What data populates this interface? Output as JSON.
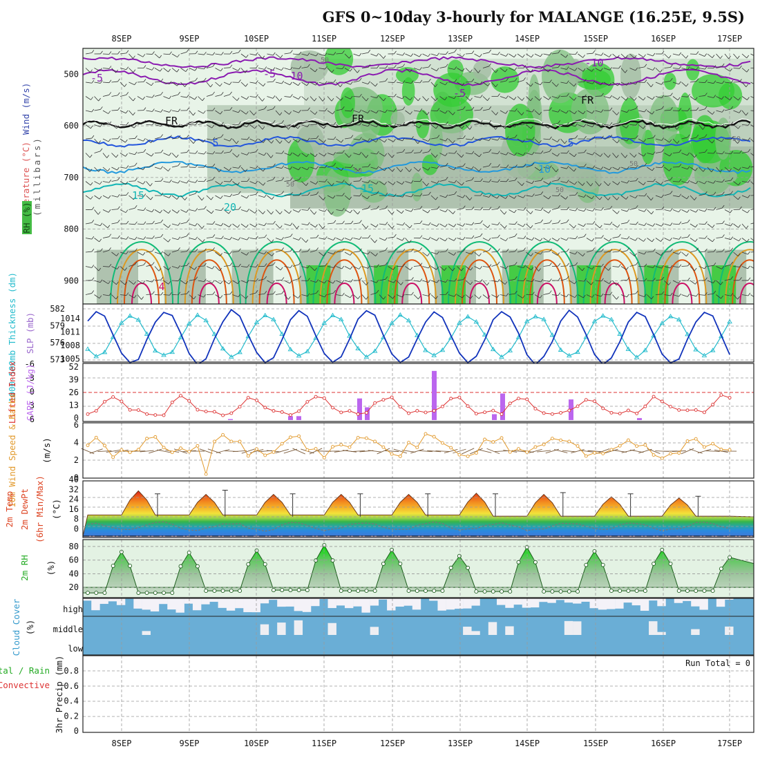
{
  "title": "GFS 0~10day 3-hourly for MALANGE (16.25E, 9.5S)",
  "day_labels": [
    "8SEP",
    "9SEP",
    "10SEP",
    "11SEP",
    "12SEP",
    "13SEP",
    "14SEP",
    "15SEP",
    "16SEP",
    "17SEP"
  ],
  "run_total": "Run Total = 0",
  "colors": {
    "rh_green": "#33cc33",
    "rh_mid": "#9fb99f",
    "rh_light": "#e3f2e3",
    "t_violet": "#8a1ab0",
    "t_blue": "#2255dd",
    "t_lightblue": "#2299dd",
    "t_teal": "#11b5b5",
    "t_green": "#11bb77",
    "t_orange": "#dd9922",
    "t_red": "#dd5511",
    "t_magenta": "#cc1166",
    "slp": "#1133bb",
    "thickness": "#22bbcc",
    "lifted": "#dd3333",
    "cape": "#bb66ee",
    "wind": "#e29a2d",
    "cloud": "#6aaed6",
    "grid": "#888888"
  },
  "panels": {
    "upper": {
      "ylabels": {
        "wind": "Wind (m/s)",
        "temperature": "Temperature (°C)",
        "rh": "RH (%)",
        "units": "(millibars)"
      },
      "pressure_ticks": [
        "500",
        "600",
        "700",
        "800",
        "900"
      ],
      "isotherm_labels": [
        "-5",
        "-5",
        "-10",
        "-5",
        "-10",
        "FR",
        "FR",
        "FR",
        "5",
        "5",
        "10",
        "15",
        "15",
        "20",
        "4",
        "50",
        "50",
        "50",
        "50",
        "50",
        "50"
      ]
    },
    "slp": {
      "ylabels": {
        "thickness": "1000-500mb Thickness (dm)",
        "slp": "SLP (mb)"
      },
      "left_ticks": [
        "582",
        "579",
        "576",
        "573"
      ],
      "right_ticks": [
        "1014",
        "1011",
        "1008",
        "1005"
      ]
    },
    "cape": {
      "ylabels": {
        "lifted": "Lifted Index",
        "cape": "CAPE (J/kg)"
      },
      "left_ticks": [
        "-6",
        "-3",
        "0",
        "3",
        "6"
      ],
      "right_ticks": [
        "52",
        "39",
        "26",
        "13",
        "0"
      ]
    },
    "wind": {
      "ylabels": {
        "wind": "10m Wind Speed & Barbs",
        "units": "(m/s)"
      },
      "ticks": [
        "6",
        "4",
        "2",
        "0"
      ]
    },
    "temp": {
      "ylabels": {
        "temp": "2m Temp",
        "dew": "2m DewPt",
        "minmax": "(6hr Min/Max)",
        "units": "(°C)"
      },
      "ticks": [
        "40",
        "32",
        "24",
        "16",
        "8",
        "0"
      ]
    },
    "rh": {
      "ylabels": {
        "rh": "2m RH",
        "units": "(%)"
      },
      "ticks": [
        "80",
        "60",
        "40",
        "20"
      ]
    },
    "cloud": {
      "ylabels": {
        "cloud": "Cloud Cover",
        "units": "(%)"
      },
      "rows": [
        "high",
        "middle",
        "low"
      ]
    },
    "precip": {
      "ylabels": {
        "total": "Total / Rain",
        "convective": "Convective",
        "precip": "3hr Precip (mm)"
      },
      "ticks": [
        "0.8",
        "0.6",
        "0.4",
        "0.2",
        "0"
      ]
    }
  },
  "chart_data": [
    {
      "type": "line",
      "name": "SLP and thickness",
      "x": [
        "8SEP",
        "9SEP",
        "10SEP",
        "11SEP",
        "12SEP",
        "13SEP",
        "14SEP",
        "15SEP",
        "16SEP",
        "17SEP"
      ],
      "series": [
        {
          "name": "SLP (mb)",
          "pattern_min": 1006,
          "pattern_max": 1015.5
        },
        {
          "name": "1000-500mb Thickness (dm)",
          "pattern_min": 573.5,
          "pattern_max": 581
        }
      ]
    },
    {
      "type": "bar",
      "name": "CAPE",
      "x": [
        "11SEP",
        "12SEP",
        "13SEP",
        "14SEP",
        "15SEP"
      ],
      "series": [
        {
          "name": "CAPE (J/kg)",
          "peaks": [
            22,
            50,
            27,
            21
          ]
        }
      ]
    },
    {
      "type": "line",
      "name": "10m Wind Speed",
      "ylim": [
        0,
        6
      ],
      "series": [
        {
          "name": "10m Wind Speed (m/s)",
          "range": [
            0.2,
            5.5
          ]
        }
      ]
    },
    {
      "type": "area",
      "name": "2m Temp",
      "ylim": [
        0,
        40
      ],
      "series": [
        {
          "name": "2m Temp max",
          "values": [
            34,
            37,
            34,
            34,
            34,
            34,
            35,
            34,
            32,
            31
          ]
        },
        {
          "name": "2m Temp min",
          "values": [
            17,
            17,
            17,
            17,
            17,
            17,
            16,
            16,
            16,
            16
          ]
        }
      ]
    },
    {
      "type": "area",
      "name": "2m RH",
      "ylim": [
        10,
        85
      ],
      "series": [
        {
          "name": "2m RH max",
          "values": [
            72,
            71,
            74,
            82,
            75,
            66,
            79,
            73,
            75,
            64
          ]
        },
        {
          "name": "2m RH min",
          "values": [
            12,
            12,
            15,
            16,
            15,
            15,
            14,
            14,
            15,
            15
          ]
        }
      ]
    },
    {
      "type": "bar",
      "name": "3hr Precip",
      "ylim": [
        0,
        1
      ],
      "series": [
        {
          "name": "3hr Precip (mm)",
          "values": [
            0,
            0,
            0,
            0,
            0,
            0,
            0,
            0,
            0,
            0
          ]
        }
      ]
    }
  ]
}
